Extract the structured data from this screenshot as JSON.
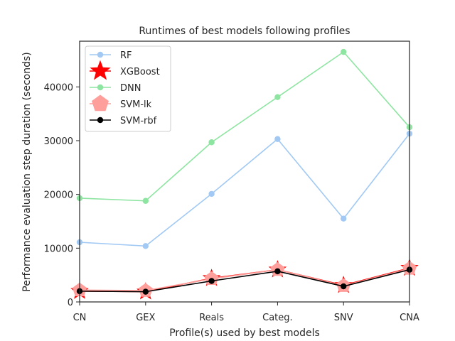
{
  "chart_data": {
    "type": "line",
    "title": "Runtimes of best models following profiles",
    "xlabel": "Profile(s) used by best models",
    "ylabel": "Performance evaluation step duration (seconds)",
    "categories": [
      "CN",
      "GEX",
      "Reals",
      "Categ.",
      "SNV",
      "CNA"
    ],
    "ylim": [
      0,
      48500
    ],
    "yticks": [
      0,
      10000,
      20000,
      30000,
      40000
    ],
    "grid": false,
    "legend_position": "top-left",
    "series": [
      {
        "name": "RF",
        "color": "#a1c9f4",
        "marker": "circle",
        "values": [
          11100,
          10400,
          20100,
          30300,
          15500,
          31300
        ]
      },
      {
        "name": "XGBoost",
        "color": "#ff0000",
        "marker": "star",
        "values": [
          2000,
          1900,
          4400,
          6000,
          3100,
          6300
        ]
      },
      {
        "name": "DNN",
        "color": "#8de5a1",
        "marker": "circle",
        "values": [
          19300,
          18800,
          29700,
          38100,
          46500,
          32500
        ]
      },
      {
        "name": "SVM-lk",
        "color": "#ff9f9b",
        "marker": "pentagon",
        "values": [
          2200,
          2100,
          4300,
          6000,
          3000,
          6200
        ]
      },
      {
        "name": "SVM-rbf",
        "color": "#000000",
        "marker": "circle",
        "values": [
          2000,
          1900,
          3900,
          5700,
          2900,
          6000
        ]
      }
    ]
  }
}
